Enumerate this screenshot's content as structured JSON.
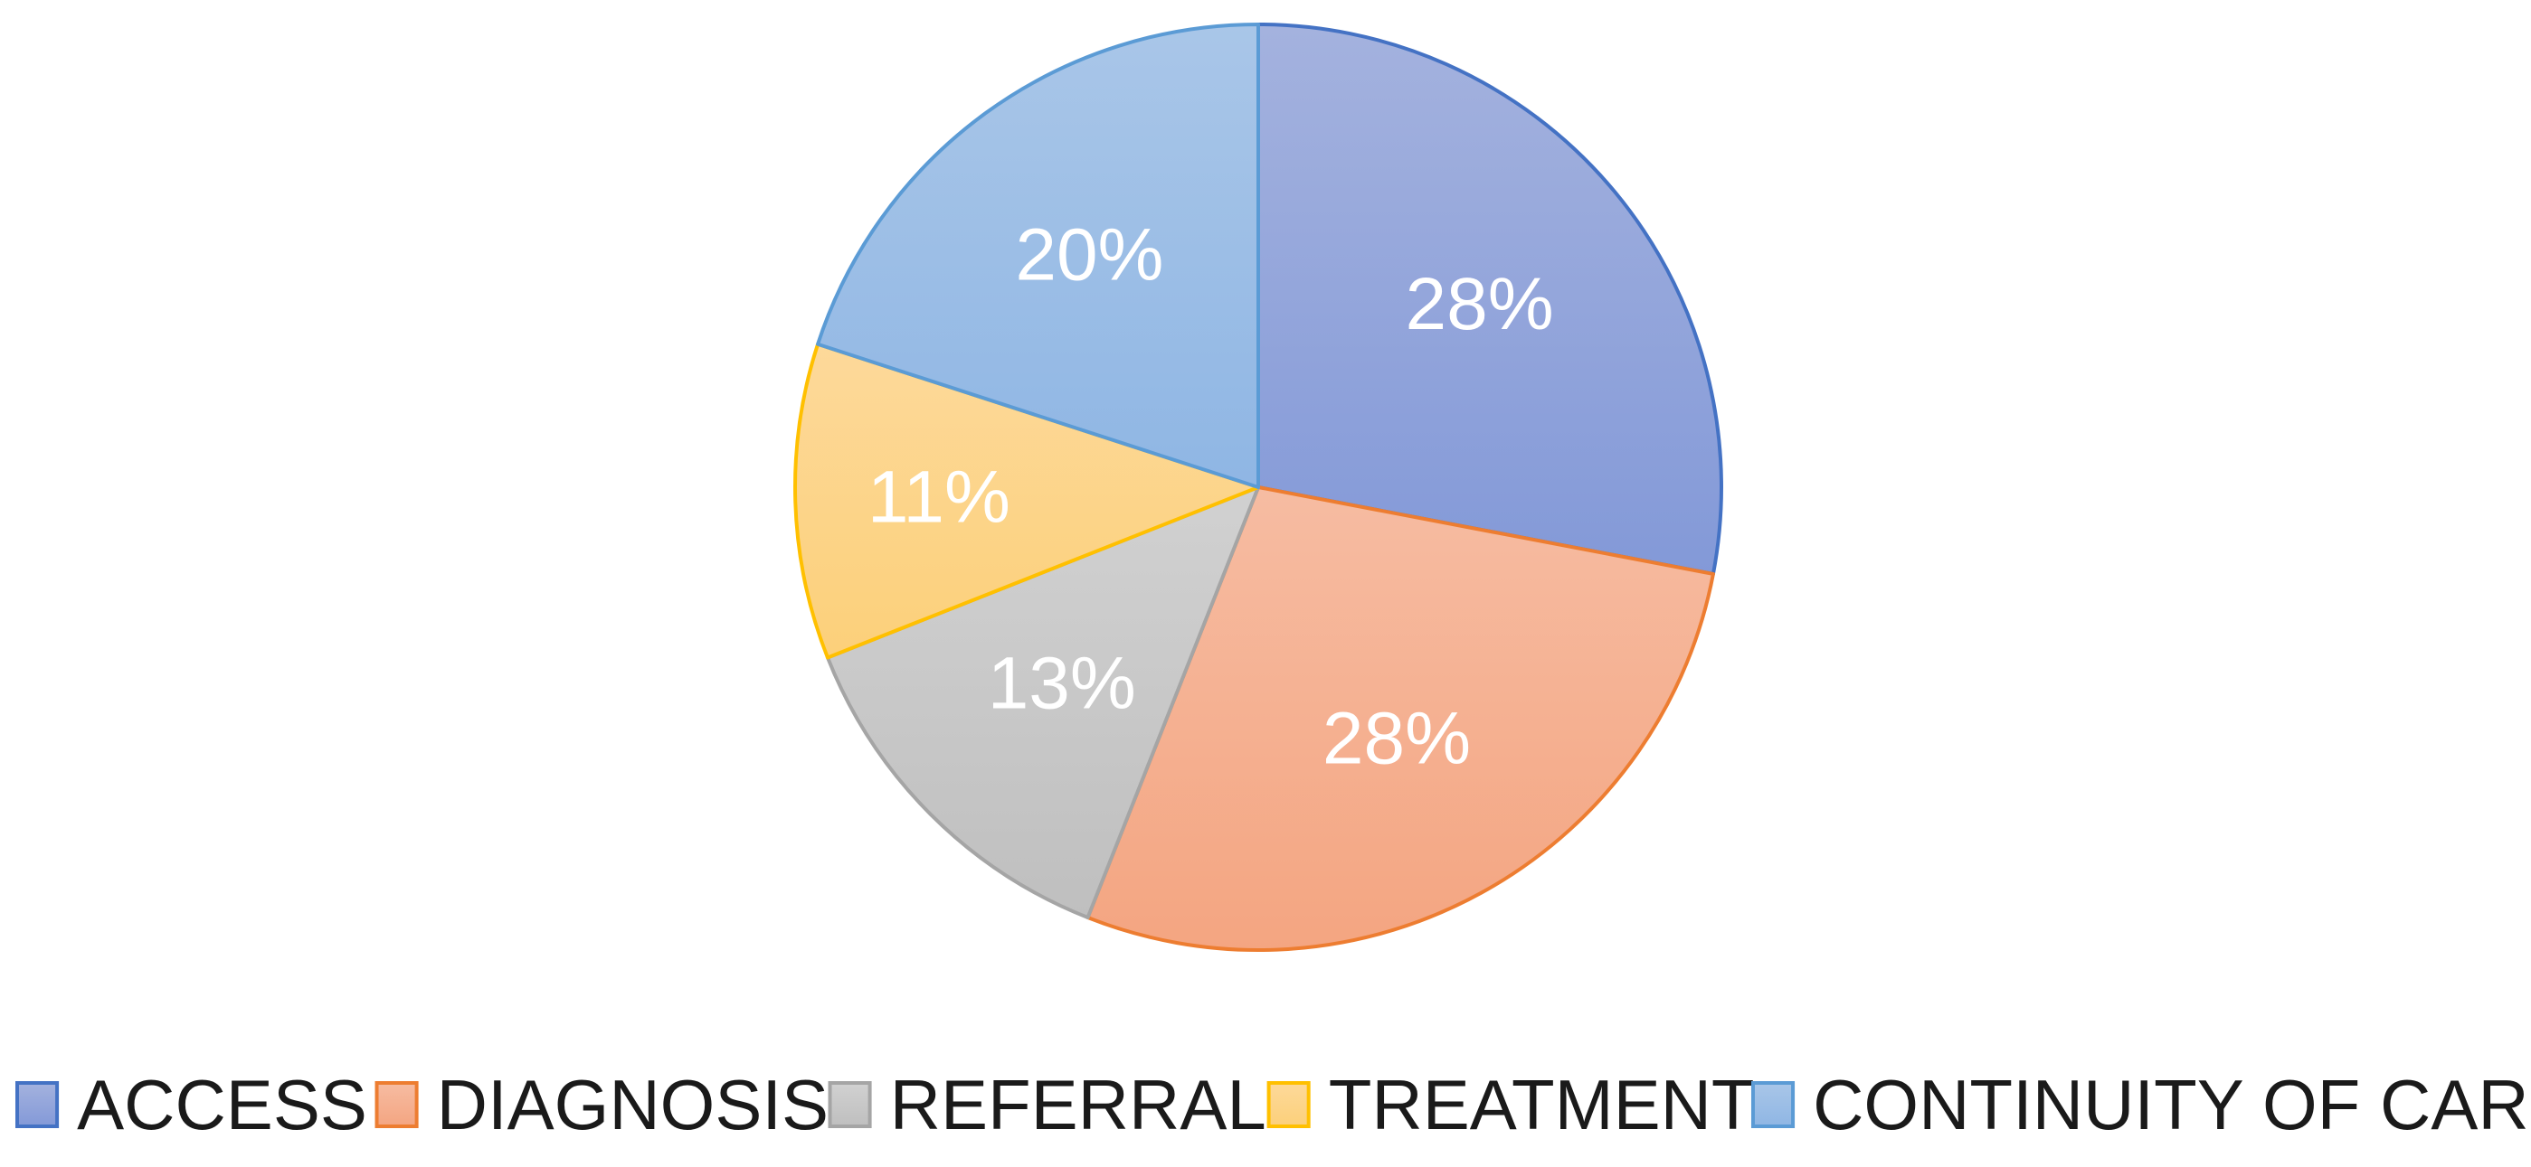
{
  "chart_data": {
    "type": "pie",
    "categories": [
      "ACCESS",
      "DIAGNOSIS",
      "REFERRAL",
      "TREATMENT",
      "CONTINUITY OF CARE"
    ],
    "values": [
      28,
      28,
      13,
      11,
      20
    ],
    "labels": [
      "28%",
      "28%",
      "13%",
      "11%",
      "20%"
    ],
    "colors": {
      "fill_top": [
        "#a4b2de",
        "#f6bca2",
        "#d1d1d1",
        "#fdd99a",
        "#a9c6e8"
      ],
      "fill_bottom": [
        "#8399d8",
        "#f4a581",
        "#bfbfbf",
        "#fcd07a",
        "#8fb6e4"
      ],
      "stroke": [
        "#4472c4",
        "#ed7d31",
        "#a5a5a5",
        "#ffc000",
        "#5b9bd5"
      ]
    },
    "start_angle": "12 o'clock",
    "direction": "clockwise",
    "legend_position": "bottom"
  }
}
